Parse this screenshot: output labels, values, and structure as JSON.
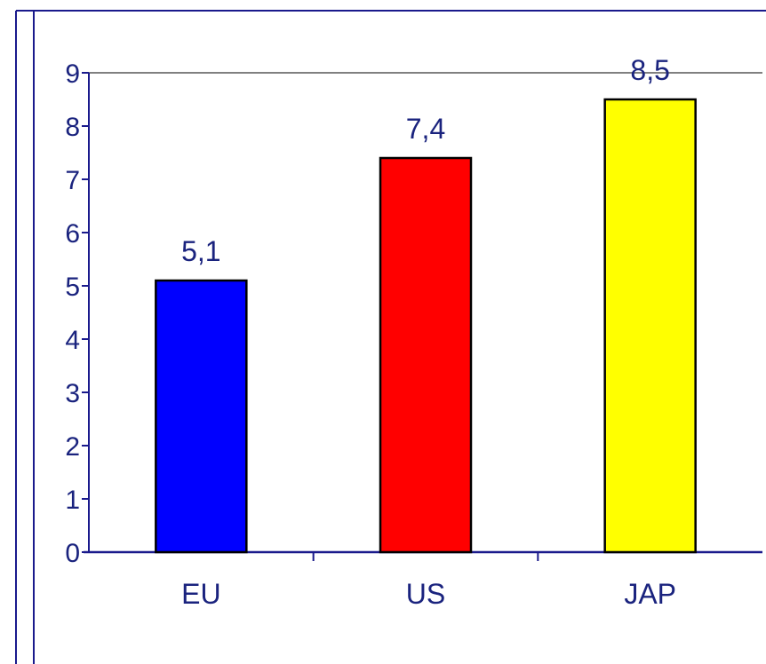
{
  "chart_data": {
    "type": "bar",
    "title": "",
    "xlabel": "",
    "ylabel": "",
    "categories": [
      "EU",
      "US",
      "JAP"
    ],
    "values": [
      5.1,
      7.4,
      8.5
    ],
    "value_labels": [
      "5,1",
      "7,4",
      "8,5"
    ],
    "colors": [
      "#0000ff",
      "#ff0000",
      "#ffff00"
    ],
    "ylim": [
      0,
      9
    ],
    "y_ticks": [
      "0",
      "1",
      "2",
      "3",
      "4",
      "5",
      "6",
      "7",
      "8",
      "9"
    ],
    "grid": false,
    "legend": "none",
    "axis_color": "#1a1a8c",
    "text_color": "#1a237e",
    "frame_color": "#1a1a8c"
  }
}
